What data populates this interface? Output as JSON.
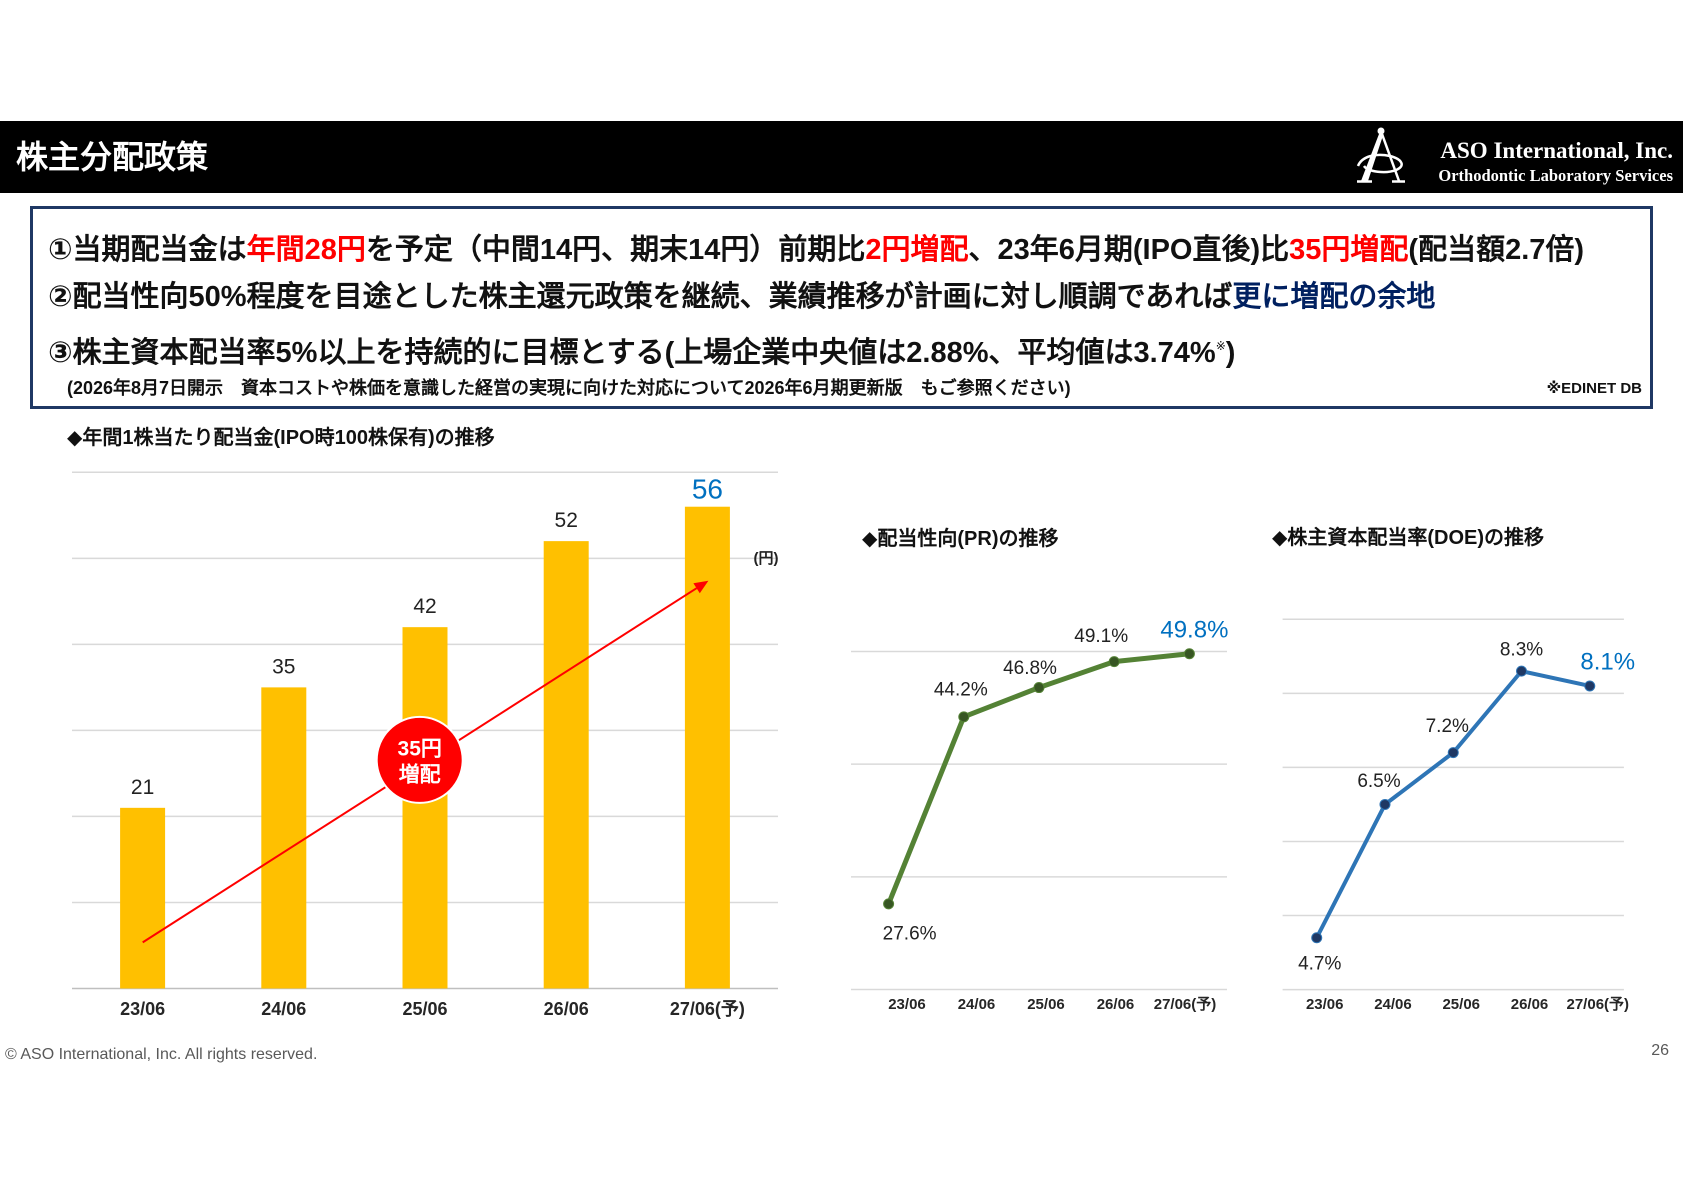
{
  "header": {
    "title": "株主分配政策",
    "company_name": "ASO International, Inc.",
    "company_tagline": "Orthodontic Laboratory Services",
    "logo_icon": "aso-a-logo-icon"
  },
  "theme": {
    "header_bg": "#000000",
    "box_border": "#1F3864",
    "emphasis_red": "#FF0000",
    "emphasis_navy": "#002060",
    "highlight_blue": "#0070C0"
  },
  "policy": {
    "line1": {
      "t1": "①当期配当金は",
      "e1": "年間28円",
      "t2": "を予定（中間14円、期末14円）前期比",
      "e2": "2円増配",
      "t3": "、23年6月期(IPO直後)比",
      "e3": "35円増配",
      "t4": "(配当額2.7倍)"
    },
    "line2": {
      "t1": "②配当性向50%程度を目途とした株主還元政策を継続、業績推移が計画に対し順調であれば",
      "e1": "更に増配の余地"
    },
    "line3": {
      "t1": "③株主資本配当率5%以上を持続的に目標とする(上場企業中央値は2.88%、平均値は3.74%",
      "note_mark": "※",
      "t2": ")"
    },
    "reference_note": "(2026年8月7日開示　資本コストや株価を意識した経営の実現に向けた対応について2026年6月期更新版　もご参照ください)",
    "source_note": "※EDINET DB"
  },
  "chart_data": [
    {
      "type": "bar",
      "title": "◆年間1株当たり配当金(IPO時100株保有)の推移",
      "unit_label": "(円)",
      "categories": [
        "23/06",
        "24/06",
        "25/06",
        "26/06",
        "27/06(予)"
      ],
      "values": [
        21,
        35,
        42,
        52,
        56
      ],
      "ylim": [
        0,
        60
      ],
      "grid": true,
      "grid_step": 10,
      "bar_color": "#FFC000",
      "highlight_index": 4,
      "annotation": {
        "lines": [
          "35円",
          "増配"
        ],
        "color": "#FF0000",
        "arrow_color": "#FF0000"
      }
    },
    {
      "type": "line",
      "title": "◆配当性向(PR)の推移",
      "categories": [
        "23/06",
        "24/06",
        "25/06",
        "26/06",
        "27/06(予)"
      ],
      "values": [
        27.6,
        44.2,
        46.8,
        49.1,
        49.8
      ],
      "value_labels": [
        "27.6%",
        "44.2%",
        "46.8%",
        "49.1%",
        "49.8%"
      ],
      "ylim": [
        20,
        50
      ],
      "grid": true,
      "grid_step": 10,
      "line_color": "#548235",
      "marker_color": "#375623",
      "highlight_index": 4
    },
    {
      "type": "line",
      "title": "◆株主資本配当率(DOE)の推移",
      "categories": [
        "23/06",
        "24/06",
        "25/06",
        "26/06",
        "27/06(予)"
      ],
      "values": [
        4.7,
        6.5,
        7.2,
        8.3,
        8.1
      ],
      "value_labels": [
        "4.7%",
        "6.5%",
        "7.2%",
        "8.3%",
        "8.1%"
      ],
      "ylim": [
        4,
        9
      ],
      "grid": true,
      "grid_step": 1,
      "line_color": "#2E75B6",
      "marker_color": "#1F3864",
      "highlight_index": 4
    }
  ],
  "footer": {
    "copyright": "© ASO International, Inc. All rights reserved.",
    "page_number": "26"
  }
}
